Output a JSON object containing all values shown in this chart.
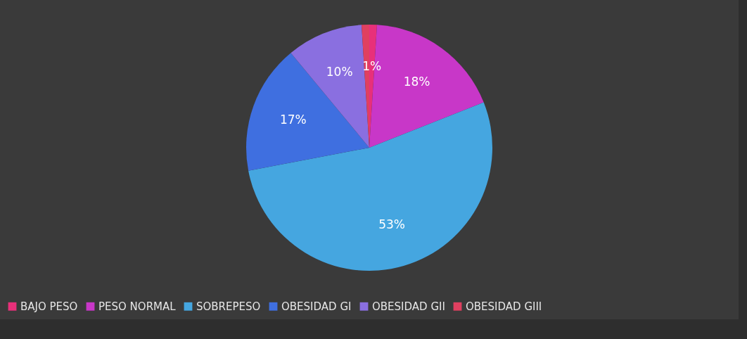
{
  "chart_data": {
    "type": "pie",
    "categories": [
      "BAJO PESO",
      "PESO NORMAL",
      "SOBREPESO",
      "OBESIDAD GI",
      "OBESIDAD GII",
      "OBESIDAD GIII"
    ],
    "values": [
      1,
      18,
      53,
      17,
      10,
      1
    ],
    "value_labels": [
      "1%",
      "18%",
      "53%",
      "17%",
      "10%",
      null
    ],
    "colors": [
      "#e8307a",
      "#c837c8",
      "#45a6e0",
      "#3f6fe0",
      "#8a6fe0",
      "#e04060"
    ],
    "legend": "bottom"
  }
}
